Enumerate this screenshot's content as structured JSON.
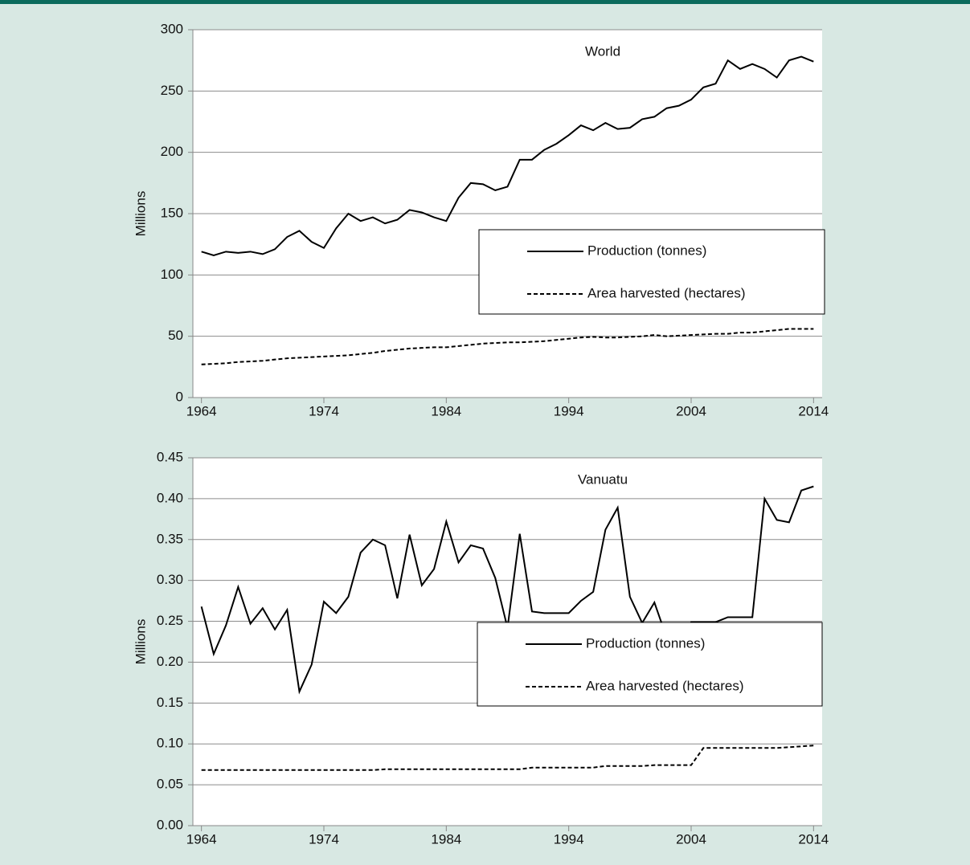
{
  "chart_data": [
    {
      "type": "line",
      "annotation": "World",
      "y_label": "Millions",
      "x": [
        1964,
        1965,
        1966,
        1967,
        1968,
        1969,
        1970,
        1971,
        1972,
        1973,
        1974,
        1975,
        1976,
        1977,
        1978,
        1979,
        1980,
        1981,
        1982,
        1983,
        1984,
        1985,
        1986,
        1987,
        1988,
        1989,
        1990,
        1991,
        1992,
        1993,
        1994,
        1995,
        1996,
        1997,
        1998,
        1999,
        2000,
        2001,
        2002,
        2003,
        2004,
        2005,
        2006,
        2007,
        2008,
        2009,
        2010,
        2011,
        2012,
        2013,
        2014
      ],
      "series": [
        {
          "name": "Production (tonnes)",
          "color": "#000000",
          "dash": "solid",
          "values": [
            119,
            116,
            119,
            118,
            119,
            117,
            121,
            131,
            136,
            127,
            122,
            138,
            150,
            144,
            147,
            142,
            145,
            153,
            151,
            147,
            144,
            163,
            175,
            174,
            169,
            172,
            194,
            194,
            202,
            207,
            214,
            222,
            218,
            224,
            219,
            220,
            227,
            229,
            236,
            238,
            243,
            253,
            256,
            275,
            268,
            272,
            268,
            261,
            275,
            278,
            274
          ]
        },
        {
          "name": "Area harvested (hectares)",
          "color": "#000000",
          "dash": "dashed",
          "values": [
            27,
            27.5,
            28,
            29,
            29.5,
            30,
            31,
            32,
            32.5,
            33,
            33.5,
            34,
            34.5,
            35.5,
            36.5,
            38,
            39,
            40,
            40.5,
            41,
            41,
            42,
            43,
            44,
            44.5,
            45,
            45,
            45.5,
            46,
            47,
            48,
            49,
            49.5,
            49,
            49,
            49.5,
            50,
            51,
            50,
            50.5,
            51,
            51.5,
            52,
            52,
            53,
            53,
            54,
            55,
            56,
            56,
            56
          ]
        }
      ],
      "xlim": [
        1963.3,
        2014.7
      ],
      "xticks": [
        1964,
        1974,
        1984,
        1994,
        2004,
        2014
      ],
      "ylim": [
        0,
        300
      ],
      "yticks": [
        0,
        50,
        100,
        150,
        200,
        250,
        300
      ],
      "grid": true,
      "legend": "center right"
    },
    {
      "type": "line",
      "annotation": "Vanuatu",
      "y_label": "Millions",
      "x": [
        1964,
        1965,
        1966,
        1967,
        1968,
        1969,
        1970,
        1971,
        1972,
        1973,
        1974,
        1975,
        1976,
        1977,
        1978,
        1979,
        1980,
        1981,
        1982,
        1983,
        1984,
        1985,
        1986,
        1987,
        1988,
        1989,
        1990,
        1991,
        1992,
        1993,
        1994,
        1995,
        1996,
        1997,
        1998,
        1999,
        2000,
        2001,
        2002,
        2003,
        2004,
        2005,
        2006,
        2007,
        2008,
        2009,
        2010,
        2011,
        2012,
        2013,
        2014
      ],
      "series": [
        {
          "name": "Production (tonnes)",
          "color": "#000000",
          "dash": "solid",
          "values": [
            0.268,
            0.21,
            0.245,
            0.292,
            0.247,
            0.266,
            0.24,
            0.264,
            0.164,
            0.197,
            0.274,
            0.26,
            0.28,
            0.334,
            0.35,
            0.343,
            0.278,
            0.356,
            0.294,
            0.314,
            0.372,
            0.322,
            0.343,
            0.339,
            0.303,
            0.242,
            0.357,
            0.262,
            0.26,
            0.26,
            0.26,
            0.275,
            0.286,
            0.362,
            0.389,
            0.28,
            0.248,
            0.273,
            0.23,
            0.231,
            0.249,
            0.249,
            0.249,
            0.255,
            0.255,
            0.255,
            0.4,
            0.374,
            0.371,
            0.41,
            0.415
          ]
        },
        {
          "name": "Area harvested (hectares)",
          "color": "#000000",
          "dash": "dashed",
          "values": [
            0.068,
            0.068,
            0.068,
            0.068,
            0.068,
            0.068,
            0.068,
            0.068,
            0.068,
            0.068,
            0.068,
            0.068,
            0.068,
            0.068,
            0.068,
            0.069,
            0.069,
            0.069,
            0.069,
            0.069,
            0.069,
            0.069,
            0.069,
            0.069,
            0.069,
            0.069,
            0.069,
            0.071,
            0.071,
            0.071,
            0.071,
            0.071,
            0.071,
            0.073,
            0.073,
            0.073,
            0.073,
            0.074,
            0.074,
            0.074,
            0.074,
            0.095,
            0.095,
            0.095,
            0.095,
            0.095,
            0.095,
            0.095,
            0.096,
            0.097,
            0.098
          ]
        }
      ],
      "xlim": [
        1963.3,
        2014.7
      ],
      "xticks": [
        1964,
        1974,
        1984,
        1994,
        2004,
        2014
      ],
      "ylim": [
        0,
        0.45
      ],
      "yticks": [
        {
          "value": 0,
          "label": "0.00"
        },
        0.05,
        {
          "value": 0.1,
          "label": "0.10"
        },
        0.15,
        {
          "value": 0.2,
          "label": "0.20"
        },
        0.25,
        {
          "value": 0.3,
          "label": "0.30"
        },
        0.35,
        {
          "value": 0.4,
          "label": "0.40"
        },
        0.45
      ],
      "grid": true,
      "legend": "center right"
    }
  ]
}
